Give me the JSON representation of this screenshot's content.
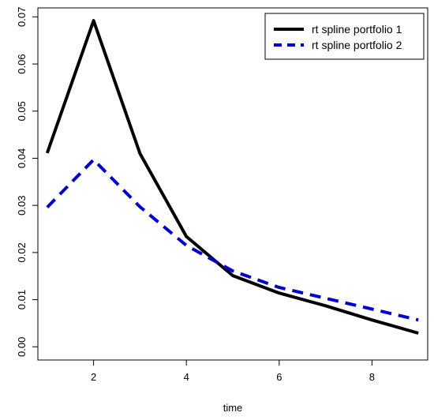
{
  "chart_data": {
    "type": "line",
    "title": "",
    "xlabel": "time",
    "ylabel": "",
    "xlim": [
      0.8,
      9.2
    ],
    "ylim": [
      -0.0028,
      0.0719
    ],
    "x_ticks": [
      2,
      4,
      6,
      8
    ],
    "x_tick_labels": [
      "2",
      "4",
      "6",
      "8"
    ],
    "y_ticks": [
      0.0,
      0.01,
      0.02,
      0.03,
      0.04,
      0.05,
      0.06,
      0.07
    ],
    "y_tick_labels": [
      "0.00",
      "0.01",
      "0.02",
      "0.03",
      "0.04",
      "0.05",
      "0.06",
      "0.07"
    ],
    "grid": false,
    "legend_position": "top-right",
    "x": [
      1,
      2,
      3,
      4,
      5,
      6,
      7,
      8,
      9
    ],
    "series": [
      {
        "name": "rt spline portfolio 1",
        "color": "#000000",
        "style": "solid",
        "values": [
          0.0411,
          0.0692,
          0.041,
          0.0234,
          0.0151,
          0.0114,
          0.0087,
          0.0057,
          0.0029
        ]
      },
      {
        "name": "rt spline portfolio 2",
        "color": "#0000cc",
        "style": "dashed",
        "values": [
          0.0296,
          0.0397,
          0.0297,
          0.0215,
          0.0161,
          0.0126,
          0.0103,
          0.008,
          0.0057
        ]
      }
    ]
  }
}
